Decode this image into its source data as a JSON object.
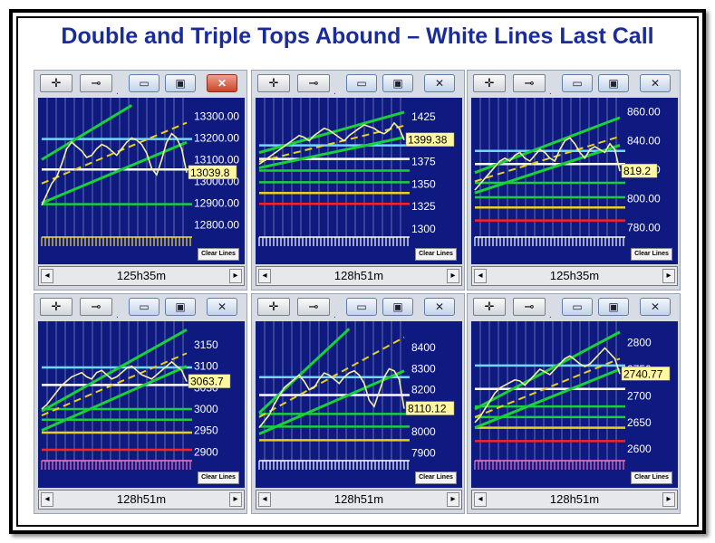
{
  "title": "Double and Triple Tops Abound – White Lines Last Call",
  "toolbar": {
    "move_icon": "crosshair-move-icon",
    "pin_icon": "pin-icon",
    "dot": ".",
    "min": "▭",
    "max": "▣",
    "close": "✕"
  },
  "clear_lines_label": "Clear Lines",
  "chart_data": [
    {
      "type": "line",
      "ylim": [
        12760,
        13360
      ],
      "yticks": [
        "13300.00",
        "13200.00",
        "13100.00",
        "13000.00",
        "12900.00",
        "12800.00"
      ],
      "ytick_values": [
        13300,
        13200,
        13100,
        13000,
        12900,
        12800
      ],
      "price_tag": "13039.8",
      "price_value": 13040,
      "scroll_label": "125h35m",
      "close_red": true,
      "tick_strip_color": "yellow",
      "series": [
        {
          "values": [
            12890,
            12940,
            12990,
            13020,
            13080,
            13150,
            13180,
            13160,
            13140,
            13110,
            13120,
            13150,
            13170,
            13160,
            13140,
            13120,
            13150,
            13180,
            13200,
            13190,
            13170,
            13130,
            13060,
            13030,
            13100,
            13180,
            13220,
            13200,
            13150,
            13040
          ]
        }
      ],
      "hlines": [
        {
          "color": "#70d8ff",
          "value": 13195
        },
        {
          "color": "#ffffff",
          "value": 13055
        },
        {
          "color": "#18d038",
          "value": 12895
        }
      ],
      "trend": [
        {
          "color": "#18d038",
          "from": [
            0,
            12900
          ],
          "to": [
            29,
            13180
          ]
        },
        {
          "color": "#18d038",
          "from": [
            0,
            13100
          ],
          "to": [
            18,
            13350
          ]
        },
        {
          "color": "#e8d020",
          "dash": true,
          "from": [
            0,
            12990
          ],
          "to": [
            29,
            13270
          ]
        }
      ]
    },
    {
      "type": "line",
      "ylim": [
        1295,
        1440
      ],
      "yticks": [
        "1425",
        "1400",
        "1375",
        "1350",
        "1325",
        "1300"
      ],
      "ytick_values": [
        1425,
        1400,
        1375,
        1350,
        1325,
        1300
      ],
      "price_tag": "1399.38",
      "price_value": 1399,
      "scroll_label": "128h51m",
      "close_red": false,
      "tick_strip_color": "white",
      "series": [
        {
          "values": [
            1372,
            1376,
            1380,
            1384,
            1388,
            1392,
            1396,
            1400,
            1404,
            1402,
            1398,
            1404,
            1408,
            1412,
            1410,
            1406,
            1402,
            1398,
            1404,
            1408,
            1412,
            1416,
            1414,
            1412,
            1408,
            1406,
            1410,
            1418,
            1412,
            1399
          ]
        }
      ],
      "hlines": [
        {
          "color": "#70d8ff",
          "value": 1393
        },
        {
          "color": "#ffffff",
          "value": 1378
        },
        {
          "color": "#18d038",
          "value": 1365
        },
        {
          "color": "#18d038",
          "value": 1352
        },
        {
          "color": "#e8d020",
          "value": 1340
        },
        {
          "color": "#ff2020",
          "value": 1328
        }
      ],
      "trend": [
        {
          "color": "#18d038",
          "from": [
            0,
            1368
          ],
          "to": [
            29,
            1402
          ]
        },
        {
          "color": "#18d038",
          "from": [
            0,
            1385
          ],
          "to": [
            29,
            1430
          ]
        },
        {
          "color": "#e8d020",
          "dash": true,
          "from": [
            0,
            1375
          ],
          "to": [
            29,
            1415
          ]
        }
      ]
    },
    {
      "type": "line",
      "ylim": [
        776,
        866
      ],
      "yticks": [
        "860.00",
        "840.00",
        "820.00",
        "800.00",
        "780.00"
      ],
      "ytick_values": [
        860,
        840,
        820,
        800,
        780
      ],
      "price_tag": "819.2",
      "price_value": 819,
      "scroll_label": "125h35m",
      "close_red": false,
      "tick_strip_color": "white",
      "series": [
        {
          "values": [
            806,
            810,
            814,
            818,
            822,
            826,
            828,
            826,
            830,
            832,
            828,
            826,
            830,
            834,
            832,
            828,
            826,
            834,
            840,
            842,
            838,
            832,
            828,
            834,
            836,
            834,
            832,
            838,
            834,
            819
          ]
        }
      ],
      "hlines": [
        {
          "color": "#70d8ff",
          "value": 833
        },
        {
          "color": "#ffffff",
          "value": 824
        },
        {
          "color": "#18d038",
          "value": 811
        },
        {
          "color": "#18d038",
          "value": 801
        },
        {
          "color": "#e8d020",
          "value": 794
        },
        {
          "color": "#ff2020",
          "value": 785
        }
      ],
      "trend": [
        {
          "color": "#18d038",
          "from": [
            0,
            804
          ],
          "to": [
            29,
            837
          ]
        },
        {
          "color": "#18d038",
          "from": [
            0,
            818
          ],
          "to": [
            29,
            856
          ]
        },
        {
          "color": "#e8d020",
          "dash": true,
          "from": [
            0,
            812
          ],
          "to": [
            29,
            843
          ]
        }
      ]
    },
    {
      "type": "line",
      "ylim": [
        2888,
        3192
      ],
      "yticks": [
        "3150",
        "3100",
        "3050",
        "3000",
        "2950",
        "2900"
      ],
      "ytick_values": [
        3150,
        3100,
        3050,
        3000,
        2950,
        2900
      ],
      "price_tag": "3063.7",
      "price_value": 3064,
      "scroll_label": "128h51m",
      "close_red": false,
      "tick_strip_color": "pink",
      "series": [
        {
          "values": [
            3000,
            3010,
            3025,
            3040,
            3055,
            3065,
            3075,
            3080,
            3085,
            3075,
            3070,
            3085,
            3090,
            3080,
            3070,
            3075,
            3085,
            3095,
            3100,
            3090,
            3080,
            3075,
            3070,
            3080,
            3090,
            3100,
            3110,
            3100,
            3090,
            3064
          ]
        }
      ],
      "hlines": [
        {
          "color": "#70d8ff",
          "value": 3097
        },
        {
          "color": "#ffffff",
          "value": 3056
        },
        {
          "color": "#18d038",
          "value": 3000
        },
        {
          "color": "#18d038",
          "value": 2975
        },
        {
          "color": "#e8d020",
          "value": 2945
        },
        {
          "color": "#ff2020",
          "value": 2905
        }
      ],
      "trend": [
        {
          "color": "#18d038",
          "from": [
            0,
            2950
          ],
          "to": [
            29,
            3100
          ]
        },
        {
          "color": "#18d038",
          "from": [
            0,
            2995
          ],
          "to": [
            29,
            3185
          ]
        },
        {
          "color": "#e8d020",
          "dash": true,
          "from": [
            0,
            2985
          ],
          "to": [
            29,
            3130
          ]
        }
      ]
    },
    {
      "type": "line",
      "ylim": [
        7880,
        8500
      ],
      "yticks": [
        "8400",
        "8300",
        "8200",
        "8000",
        "7900"
      ],
      "ytick_values": [
        8400,
        8300,
        8200,
        8000,
        7900
      ],
      "price_tag": "8110.12",
      "price_value": 8110,
      "scroll_label": "128h51m",
      "close_red": false,
      "tick_strip_color": "white",
      "series": [
        {
          "values": [
            8020,
            8050,
            8080,
            8130,
            8170,
            8210,
            8230,
            8250,
            8270,
            8240,
            8200,
            8210,
            8250,
            8280,
            8270,
            8250,
            8230,
            8260,
            8280,
            8290,
            8270,
            8230,
            8150,
            8120,
            8190,
            8260,
            8300,
            8290,
            8250,
            8110
          ]
        }
      ],
      "hlines": [
        {
          "color": "#70d8ff",
          "value": 8260
        },
        {
          "color": "#ffffff",
          "value": 8175
        },
        {
          "color": "#18d038",
          "value": 8085
        },
        {
          "color": "#18d038",
          "value": 8025
        },
        {
          "color": "#e8d020",
          "value": 7960
        }
      ],
      "trend": [
        {
          "color": "#18d038",
          "from": [
            0,
            7990
          ],
          "to": [
            29,
            8290
          ]
        },
        {
          "color": "#18d038",
          "from": [
            0,
            8090
          ],
          "to": [
            18,
            8490
          ]
        },
        {
          "color": "#e8d020",
          "dash": true,
          "from": [
            0,
            8070
          ],
          "to": [
            29,
            8450
          ]
        }
      ]
    },
    {
      "type": "line",
      "ylim": [
        2585,
        2830
      ],
      "yticks": [
        "2800",
        "2750",
        "2700",
        "2650",
        "2600"
      ],
      "ytick_values": [
        2800,
        2750,
        2700,
        2650,
        2600
      ],
      "price_tag": "2740.77",
      "price_value": 2741,
      "scroll_label": "128h51m",
      "close_red": false,
      "tick_strip_color": "pink",
      "series": [
        {
          "values": [
            2650,
            2660,
            2675,
            2690,
            2705,
            2715,
            2720,
            2725,
            2730,
            2728,
            2720,
            2730,
            2740,
            2750,
            2745,
            2740,
            2750,
            2760,
            2770,
            2775,
            2768,
            2760,
            2755,
            2760,
            2770,
            2780,
            2790,
            2780,
            2770,
            2741
          ]
        }
      ],
      "hlines": [
        {
          "color": "#70d8ff",
          "value": 2757
        },
        {
          "color": "#ffffff",
          "value": 2713
        },
        {
          "color": "#18d038",
          "value": 2680
        },
        {
          "color": "#18d038",
          "value": 2660
        },
        {
          "color": "#e8d020",
          "value": 2640
        },
        {
          "color": "#ff2020",
          "value": 2615
        }
      ],
      "trend": [
        {
          "color": "#18d038",
          "from": [
            0,
            2640
          ],
          "to": [
            29,
            2750
          ]
        },
        {
          "color": "#18d038",
          "from": [
            0,
            2675
          ],
          "to": [
            29,
            2820
          ]
        },
        {
          "color": "#e8d020",
          "dash": true,
          "from": [
            0,
            2660
          ],
          "to": [
            29,
            2770
          ]
        }
      ]
    }
  ]
}
